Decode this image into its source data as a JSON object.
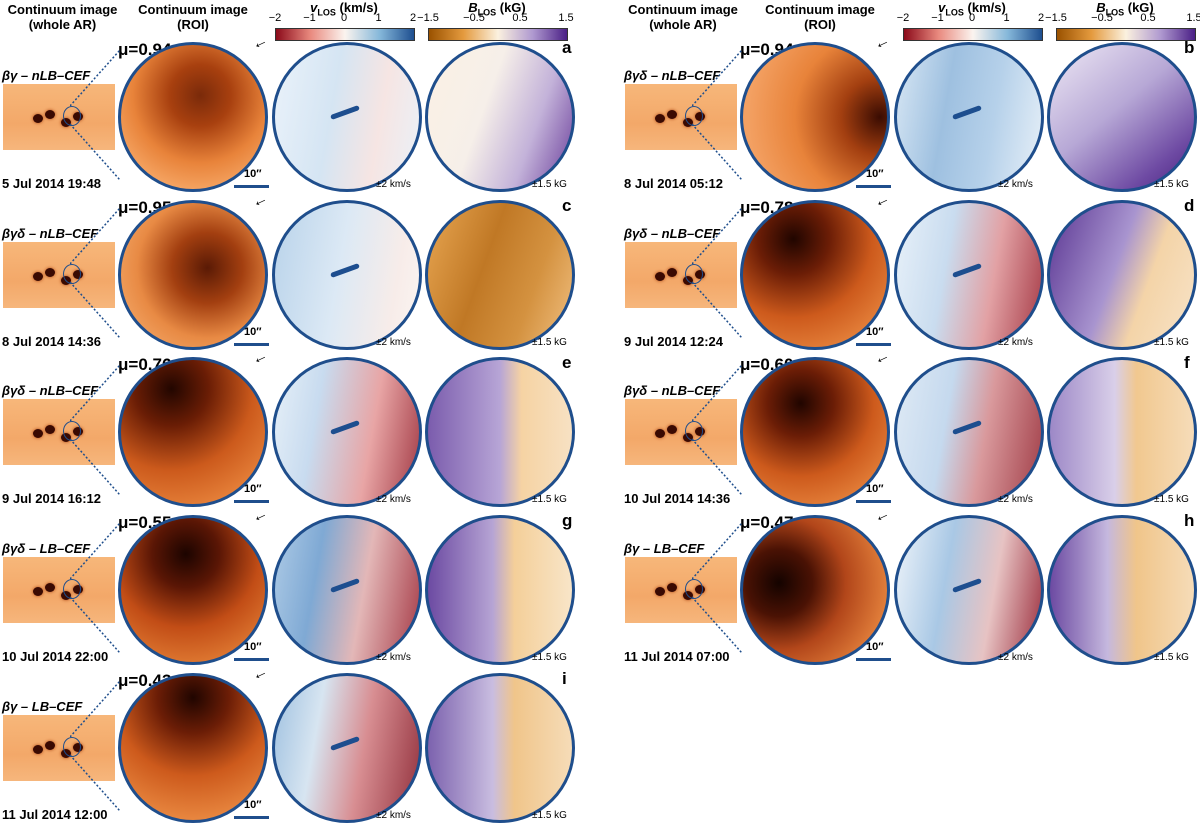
{
  "headers": {
    "left": {
      "whole_ar": "Continuum image\n(whole AR)",
      "roi": "Continuum image\n(ROI)"
    },
    "right": {
      "whole_ar": "Continuum image\n(whole AR)",
      "roi": "Continuum image\n(ROI)"
    }
  },
  "colorbars": {
    "vlos": {
      "title_var": "v",
      "title_sub": "LOS",
      "title_unit": " (km/s)",
      "ticks": [
        "−2",
        "−1",
        "0",
        "1",
        "2"
      ]
    },
    "blos": {
      "title_var": "B",
      "title_sub": "LOS",
      "title_unit": " (kG)",
      "ticks": [
        "−1.5",
        "−0.5",
        "0.5",
        "1.5"
      ]
    }
  },
  "scale_label": "10″",
  "vrange_label": "±2 km/s",
  "brange_label": "±1.5 kG",
  "panels": [
    {
      "letter": "a",
      "mu": "μ=0.94",
      "cls": "βγ – nLB–CEF",
      "date": "5 Jul 2014 19:48"
    },
    {
      "letter": "c",
      "mu": "μ=0.95",
      "cls": "βγδ – nLB–CEF",
      "date": "8 Jul 2014 14:36"
    },
    {
      "letter": "e",
      "mu": "μ=0.76",
      "cls": "βγδ – nLB–CEF",
      "date": "9 Jul 2014 16:12"
    },
    {
      "letter": "g",
      "mu": "μ=0.55",
      "cls": "βγδ – LB–CEF",
      "date": "10 Jul 2014 22:00"
    },
    {
      "letter": "i",
      "mu": "μ=0.43",
      "cls": "βγ – LB–CEF",
      "date": "11 Jul 2014 12:00"
    },
    {
      "letter": "b",
      "mu": "μ=0.94",
      "cls": "βγδ – nLB–CEF",
      "date": "8 Jul 2014 05:12"
    },
    {
      "letter": "d",
      "mu": "μ=0.78",
      "cls": "βγδ – nLB–CEF",
      "date": "9 Jul 2014 12:24"
    },
    {
      "letter": "f",
      "mu": "μ=0.60",
      "cls": "βγδ – nLB–CEF",
      "date": "10 Jul 2014 14:36"
    },
    {
      "letter": "h",
      "mu": "μ=0.47",
      "cls": "βγ – LB–CEF",
      "date": "11 Jul 2014 07:00"
    }
  ],
  "colors": {
    "disk_border": "#1f4e8c",
    "continuum_dark": "#2a0a02",
    "continuum_light": "#f39a4a"
  }
}
